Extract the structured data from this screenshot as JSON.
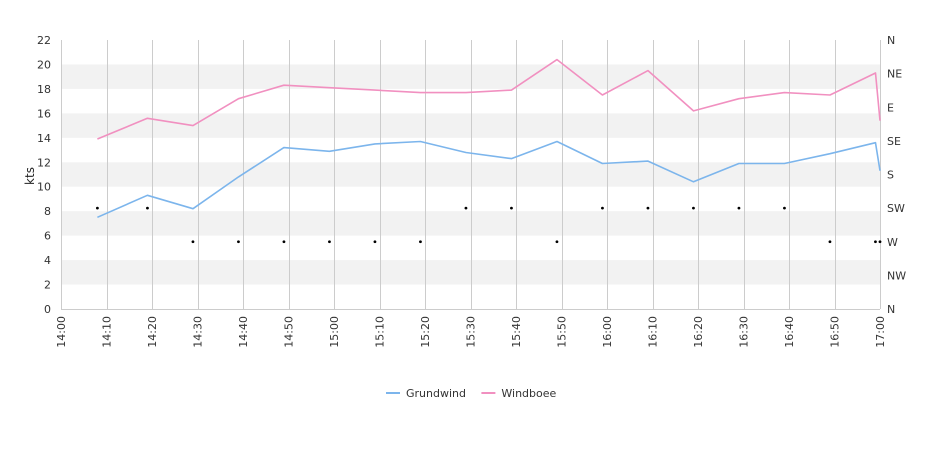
{
  "chart_data": {
    "type": "line",
    "ylabel": "kts",
    "ylim": [
      0,
      22
    ],
    "y_ticks": [
      "0",
      "2",
      "4",
      "6",
      "8",
      "10",
      "12",
      "14",
      "16",
      "18",
      "20",
      "22"
    ],
    "x_tick_labels": [
      "14:00",
      "14:10",
      "14:20",
      "14:30",
      "14:40",
      "14:50",
      "15:00",
      "15:10",
      "15:20",
      "15:30",
      "15:40",
      "15:50",
      "16:00",
      "16:10",
      "16:20",
      "16:30",
      "16:40",
      "16:50",
      "17:00"
    ],
    "x_range_minutes": [
      0,
      180
    ],
    "direction_labels": [
      "N",
      "NW",
      "W",
      "SW",
      "S",
      "SE",
      "E",
      "NE",
      "N"
    ],
    "grid": true,
    "legend_position": "bottom",
    "colors": {
      "Grundwind": "#7cb5ec",
      "Windboee": "#f190c0",
      "band": "#f2f2f2",
      "vgrid": "#cccccc",
      "dots": "#000000"
    },
    "x": [
      "14:08",
      "14:19",
      "14:29",
      "14:39",
      "14:49",
      "14:59",
      "15:09",
      "15:19",
      "15:29",
      "15:39",
      "15:49",
      "15:59",
      "16:09",
      "16:19",
      "16:29",
      "16:39",
      "16:49",
      "16:59",
      "17:00"
    ],
    "series": [
      {
        "name": "Grundwind",
        "values": [
          7.5,
          9.3,
          8.2,
          10.8,
          13.2,
          12.9,
          13.5,
          13.7,
          12.8,
          12.3,
          13.7,
          11.9,
          12.1,
          10.4,
          11.9,
          11.9,
          12.7,
          13.6,
          11.3
        ]
      },
      {
        "name": "Windboee",
        "values": [
          13.9,
          15.6,
          15.0,
          17.2,
          18.3,
          18.1,
          17.9,
          17.7,
          17.7,
          17.9,
          20.4,
          17.5,
          19.5,
          16.2,
          17.2,
          17.7,
          17.5,
          19.3,
          15.4
        ]
      }
    ],
    "wind_direction": {
      "x": [
        "14:08",
        "14:19",
        "14:29",
        "14:39",
        "14:49",
        "14:59",
        "15:09",
        "15:19",
        "15:29",
        "15:39",
        "15:49",
        "15:59",
        "16:09",
        "16:19",
        "16:29",
        "16:39",
        "16:49",
        "16:59",
        "17:00"
      ],
      "values": [
        "SW",
        "SW",
        "W",
        "W",
        "W",
        "W",
        "W",
        "W",
        "SW",
        "SW",
        "W",
        "SW",
        "SW",
        "SW",
        "SW",
        "SW",
        "W",
        "W",
        "W"
      ]
    }
  }
}
